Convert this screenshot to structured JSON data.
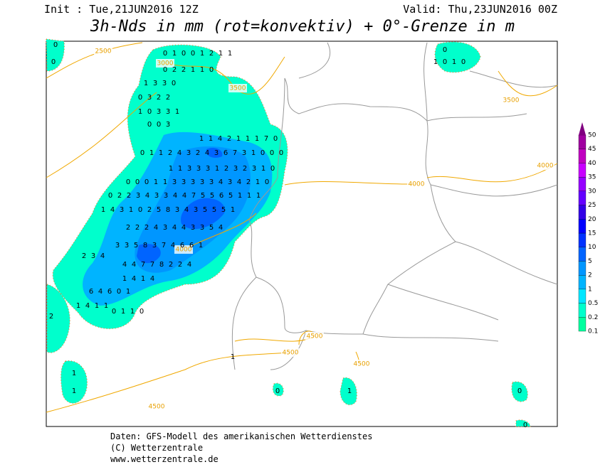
{
  "header": {
    "init": "Init : Tue,21JUN2016 12Z",
    "valid": "Valid: Thu,23JUN2016 00Z",
    "title": "3h-Nds in mm (rot=konvektiv) + 0°-Grenze in m"
  },
  "footer": [
    "Daten: GFS-Modell des amerikanischen Wetterdienstes",
    "(C) Wetterzentrale",
    "www.wetterzentrale.de"
  ],
  "legend": {
    "levels": [
      0.1,
      0.2,
      0.5,
      1,
      2,
      5,
      10,
      15,
      20,
      25,
      30,
      35,
      40,
      45,
      50
    ],
    "colors": [
      "#00ff9f",
      "#00ffcc",
      "#00e6ff",
      "#00b4ff",
      "#0096ff",
      "#0064ff",
      "#0032ff",
      "#0000ff",
      "#3200e6",
      "#6400ff",
      "#9600ff",
      "#c800ff",
      "#c000c0",
      "#a000a0",
      "#800080"
    ]
  },
  "contour_labels": [
    2500,
    3000,
    3500,
    3500,
    4000,
    4000,
    4000,
    4500,
    4500,
    4500,
    4500
  ],
  "precip_grid": [
    [
      0,
      1,
      0,
      0,
      1,
      2,
      1,
      1
    ],
    [
      0,
      2,
      2,
      1,
      1,
      0
    ],
    [
      1,
      3,
      3,
      0
    ],
    [
      0,
      3,
      2,
      2
    ],
    [
      1,
      0,
      3,
      3,
      1
    ],
    [
      0,
      0,
      3
    ],
    [
      1,
      1,
      4,
      2,
      1,
      1,
      1,
      7,
      0
    ],
    [
      0,
      1,
      1,
      2,
      4,
      3,
      2,
      4,
      3,
      6,
      7,
      3,
      1,
      0,
      0,
      0
    ],
    [
      1,
      1,
      3,
      3,
      3,
      1,
      2,
      3,
      2,
      3,
      1,
      0
    ],
    [
      0,
      0,
      0,
      1,
      1,
      3,
      3,
      3,
      3,
      3,
      4,
      3,
      4,
      2,
      1,
      0
    ],
    [
      0,
      2,
      2,
      3,
      4,
      3,
      3,
      4,
      4,
      7,
      5,
      5,
      6,
      5,
      1,
      1,
      1
    ],
    [
      1,
      4,
      3,
      1,
      0,
      2,
      5,
      8,
      3,
      4,
      3,
      5,
      5,
      5,
      1
    ],
    [
      2,
      2,
      2,
      4,
      3,
      4,
      4,
      3,
      3,
      5,
      4
    ],
    [
      3,
      3,
      5,
      8,
      3,
      7,
      4,
      6,
      6,
      1
    ],
    [
      4,
      4,
      7,
      7,
      8,
      2,
      2,
      4
    ],
    [
      1,
      4,
      1,
      4
    ],
    [
      2,
      3,
      4
    ],
    [
      6,
      4,
      6,
      0,
      1
    ],
    [
      1,
      4,
      1,
      1
    ],
    [
      0,
      1,
      1,
      0
    ],
    [
      1,
      0,
      1,
      0
    ]
  ],
  "isolated": [
    0,
    2,
    1,
    1,
    1,
    0,
    0,
    1,
    0,
    0,
    0
  ]
}
